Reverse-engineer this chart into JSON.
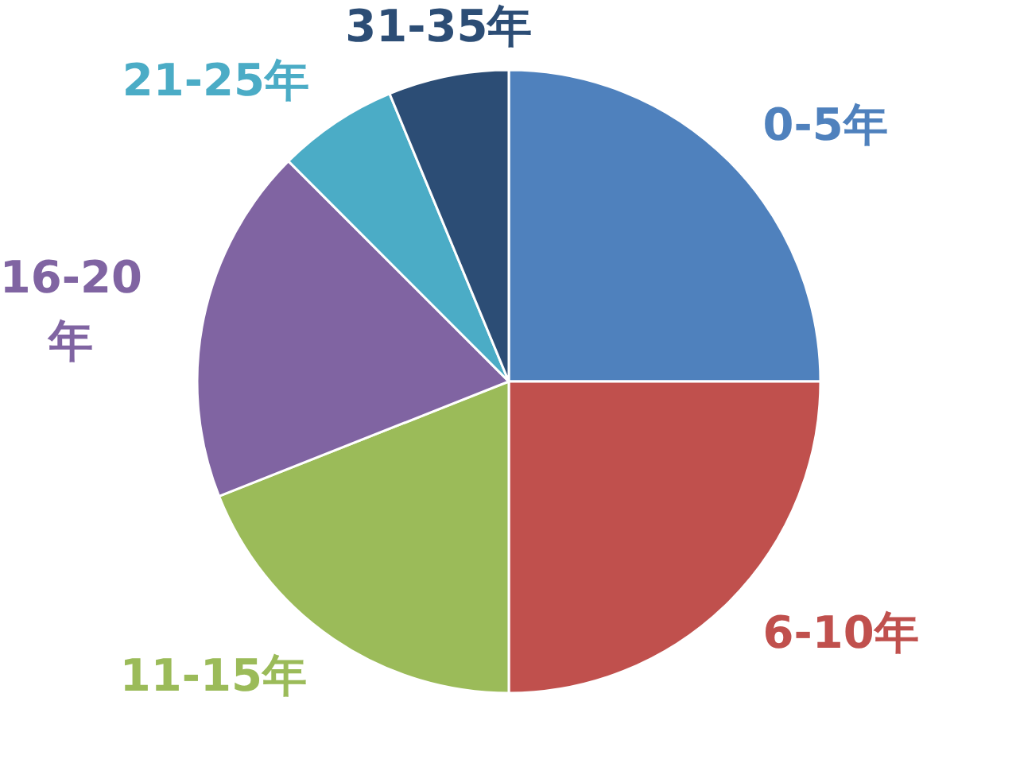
{
  "chart_data": {
    "type": "pie",
    "categories": [
      "0-5年",
      "6-10年",
      "11-15年",
      "16-20年",
      "21-25年",
      "31-35年"
    ],
    "values": [
      25,
      25,
      19,
      18.5,
      6.25,
      6.25
    ],
    "colors": [
      "#4f81bd",
      "#c0504d",
      "#9bbb59",
      "#8064a2",
      "#4bacc6",
      "#2c4d75"
    ]
  }
}
